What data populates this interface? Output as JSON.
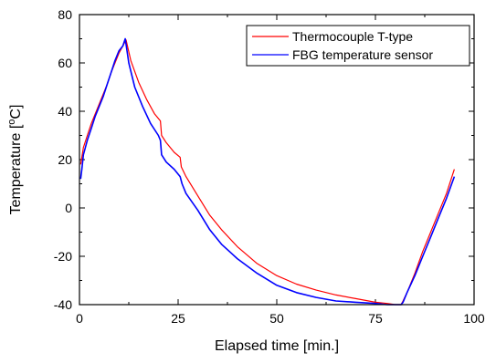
{
  "chart_data": {
    "type": "line",
    "title": "",
    "xlabel": "Elapsed time [min.]",
    "ylabel_parts": [
      "Temperature [",
      "o",
      "C]"
    ],
    "xlim": [
      0,
      100
    ],
    "ylim": [
      -40,
      80
    ],
    "xticks": [
      0,
      25,
      50,
      75,
      100
    ],
    "yticks": [
      -40,
      -20,
      0,
      20,
      40,
      60,
      80
    ],
    "grid": false,
    "legend_position": "top-right",
    "series": [
      {
        "name": "Thermocouple T-type",
        "color": "#ff0000",
        "x": [
          0.3,
          1,
          2,
          3,
          4,
          5,
          6,
          7,
          8,
          9,
          10,
          11,
          11.8,
          13,
          15,
          17,
          19,
          20.5,
          20.8,
          22,
          24,
          25.5,
          25.8,
          27,
          30,
          33,
          36,
          40,
          45,
          50,
          55,
          60,
          65,
          70,
          75,
          78,
          80,
          81.5,
          82,
          83,
          85,
          87,
          89,
          91,
          93,
          95
        ],
        "y": [
          18,
          25,
          30,
          35,
          39,
          43,
          47,
          51,
          56,
          60,
          64,
          67,
          69.5,
          61,
          52,
          45,
          39,
          36,
          30,
          27,
          23,
          21,
          17,
          13,
          5,
          -3,
          -9,
          -16,
          -23,
          -28,
          -31.5,
          -34,
          -36,
          -37.5,
          -39,
          -39.5,
          -40,
          -40,
          -38.5,
          -35,
          -27,
          -18,
          -10,
          -2,
          6,
          16
        ]
      },
      {
        "name": "FBG temperature sensor",
        "color": "#0000ff",
        "x": [
          0.3,
          0.6,
          1,
          2,
          3,
          4,
          5,
          6,
          7,
          8,
          9,
          10,
          11,
          11.6,
          12.5,
          14,
          16,
          18,
          20,
          20.5,
          20.8,
          22,
          24,
          25.5,
          26,
          27,
          30,
          33,
          36,
          40,
          45,
          50,
          55,
          60,
          65,
          70,
          75,
          78,
          80,
          81.5,
          82,
          83,
          85,
          87,
          89,
          91,
          93,
          95
        ],
        "y": [
          12,
          16,
          22,
          28,
          33,
          38,
          42,
          46,
          51,
          56,
          61,
          65,
          67,
          70,
          60,
          50,
          42,
          35,
          30,
          28,
          22,
          19,
          16,
          13,
          10,
          6,
          -1,
          -9,
          -15,
          -21,
          -27,
          -32,
          -35,
          -37,
          -38.5,
          -39,
          -39.5,
          -40,
          -40,
          -40,
          -39,
          -35,
          -28,
          -20,
          -12,
          -4,
          4,
          13
        ]
      }
    ]
  }
}
